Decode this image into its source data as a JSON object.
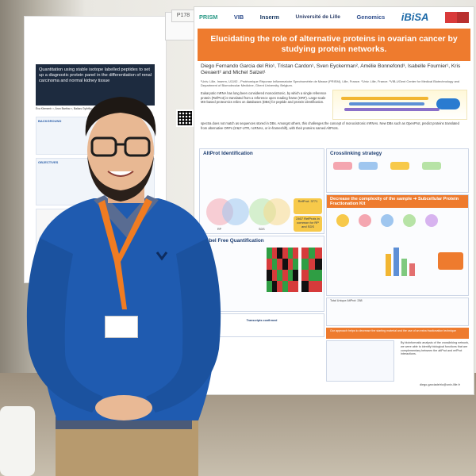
{
  "left_poster": {
    "title": "Quantitation using stable isotope labelled peptides to set up a diagnostic protein panel in the differentiation of renal carcinoma and normal kidney tissue",
    "authors": "Éva Klement¹·², Áron Bartha¹·², Balázs Győrffy¹·², Zsuzsanna Darula¹·²",
    "section_label": "BACKGROUND",
    "objectives_label": "OBJECTIVES"
  },
  "booth": {
    "number": "P178"
  },
  "poster": {
    "logos": [
      "PRISM",
      "VIB",
      "Inserm",
      "Université de Lille",
      "Genomics",
      "iBiSA"
    ],
    "title": "Elucidating the role of alternative proteins in ovarian cancer by studying protein networks.",
    "authors": "Diego Fernando Garcia del Rio¹, Tristan Cardon¹, Sven Eyckerman², Amélie Bonnefond³, Isabelle Fournier¹, Kris Gevaert² and Michel Salzet¹",
    "affiliation": "¹Univ. Lille, Inserm, U1192 - Protéomique Réponse Inflammatoire Spectrométrie de Masse (PRISM), Lille, France. ²Univ. Lille, France. ³VIB-UGent Center for Medical Biotechnology and Department of Biomolecular Medicine, Ghent University, Belgium.",
    "intro": "Eukaryotic mRNA has long been considered monocistronic, by which a single reference protein (RefProt) is translated from a reference open reading frame (ORF). Large-scale MS-based proteomics relies on databases (DBs) for peptide and protein identification.",
    "aim": "spectra does not match as sequences stored in DBs. Amongst others, this challenges the concept of monocistronic mRNAs. New DBs such as OpenProt, predict proteins translated from alternative ORFs (5'&3'-UTR, ncRNAs, or in-frameshift), with their proteins named AltProts.",
    "sections": {
      "identification": "AltProt Identification",
      "quantification": "Label Free Quantification",
      "crosslinking": "Crosslinking strategy",
      "complexity": "Decrease the complexity of the sample ➜ Subcellular Protein Fractionation Kit",
      "complexity_note": "Our approach helps to decrease the starting material and the use of an extra fractionation technique"
    },
    "stats": {
      "refprot_total": "RefProt: 3771",
      "altprot_total": "AltProts",
      "common": "2467 RefProts in common for RP and SDS",
      "transcripts": "Transcripts confirmed",
      "total_altprot": "Total AltProts : 3712",
      "total_unique": "Total Unique AltProt: 288"
    },
    "venn_labels": [
      "RP",
      "SDS"
    ],
    "conclusion": "By bioinformatic analysis of the crosslinking network, we were able to identify biological functions that are complementary between the altProt and refProt interactions.",
    "contact": "diego.garciadelrio@univ-lille.fr"
  },
  "colors": {
    "accent_orange": "#ee7b2e",
    "poster_blue": "#1f3f72",
    "sweater_blue": "#1f5bb0",
    "lanyard_orange": "#f07c22"
  }
}
